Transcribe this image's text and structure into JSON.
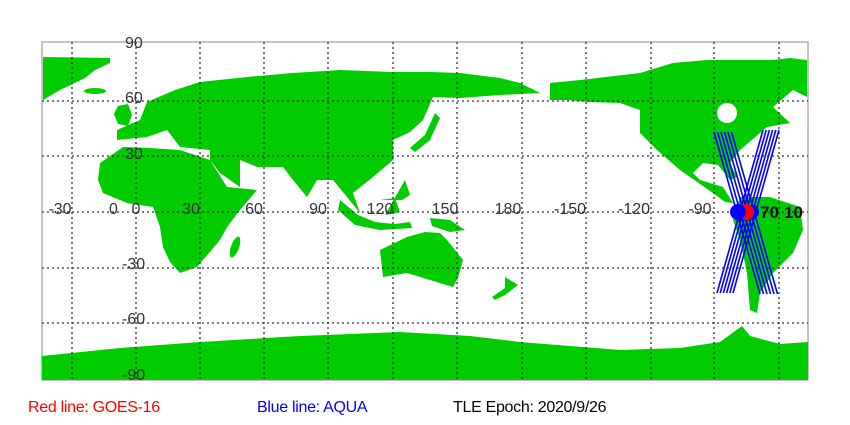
{
  "map": {
    "projection": "equirectangular",
    "center_longitude": 135,
    "land_color": "#00cc00",
    "grid": "dotted",
    "lat_labels": [
      "90",
      "60",
      "30",
      "0",
      "-30",
      "-60",
      "-90"
    ],
    "lon_labels": [
      "-30",
      "0",
      "30",
      "60",
      "90",
      "120",
      "150",
      "180",
      "-150",
      "-120",
      "-90"
    ]
  },
  "satellites": [
    {
      "name": "GOES-16",
      "color": "#ff0000",
      "longitude": -75.2,
      "latitude": 0
    },
    {
      "name": "AQUA",
      "color": "#0000ff",
      "longitude": -78,
      "latitude": 0
    }
  ],
  "marker_labels": [
    "70",
    "10"
  ],
  "legend": {
    "red": {
      "text": "Red line: GOES-16",
      "color": "#ff0000"
    },
    "blue": {
      "text": "Blue line: AQUA",
      "color": "#0000ff"
    },
    "epoch": {
      "text": "TLE Epoch: 2020/9/26",
      "color": "#000000"
    }
  }
}
